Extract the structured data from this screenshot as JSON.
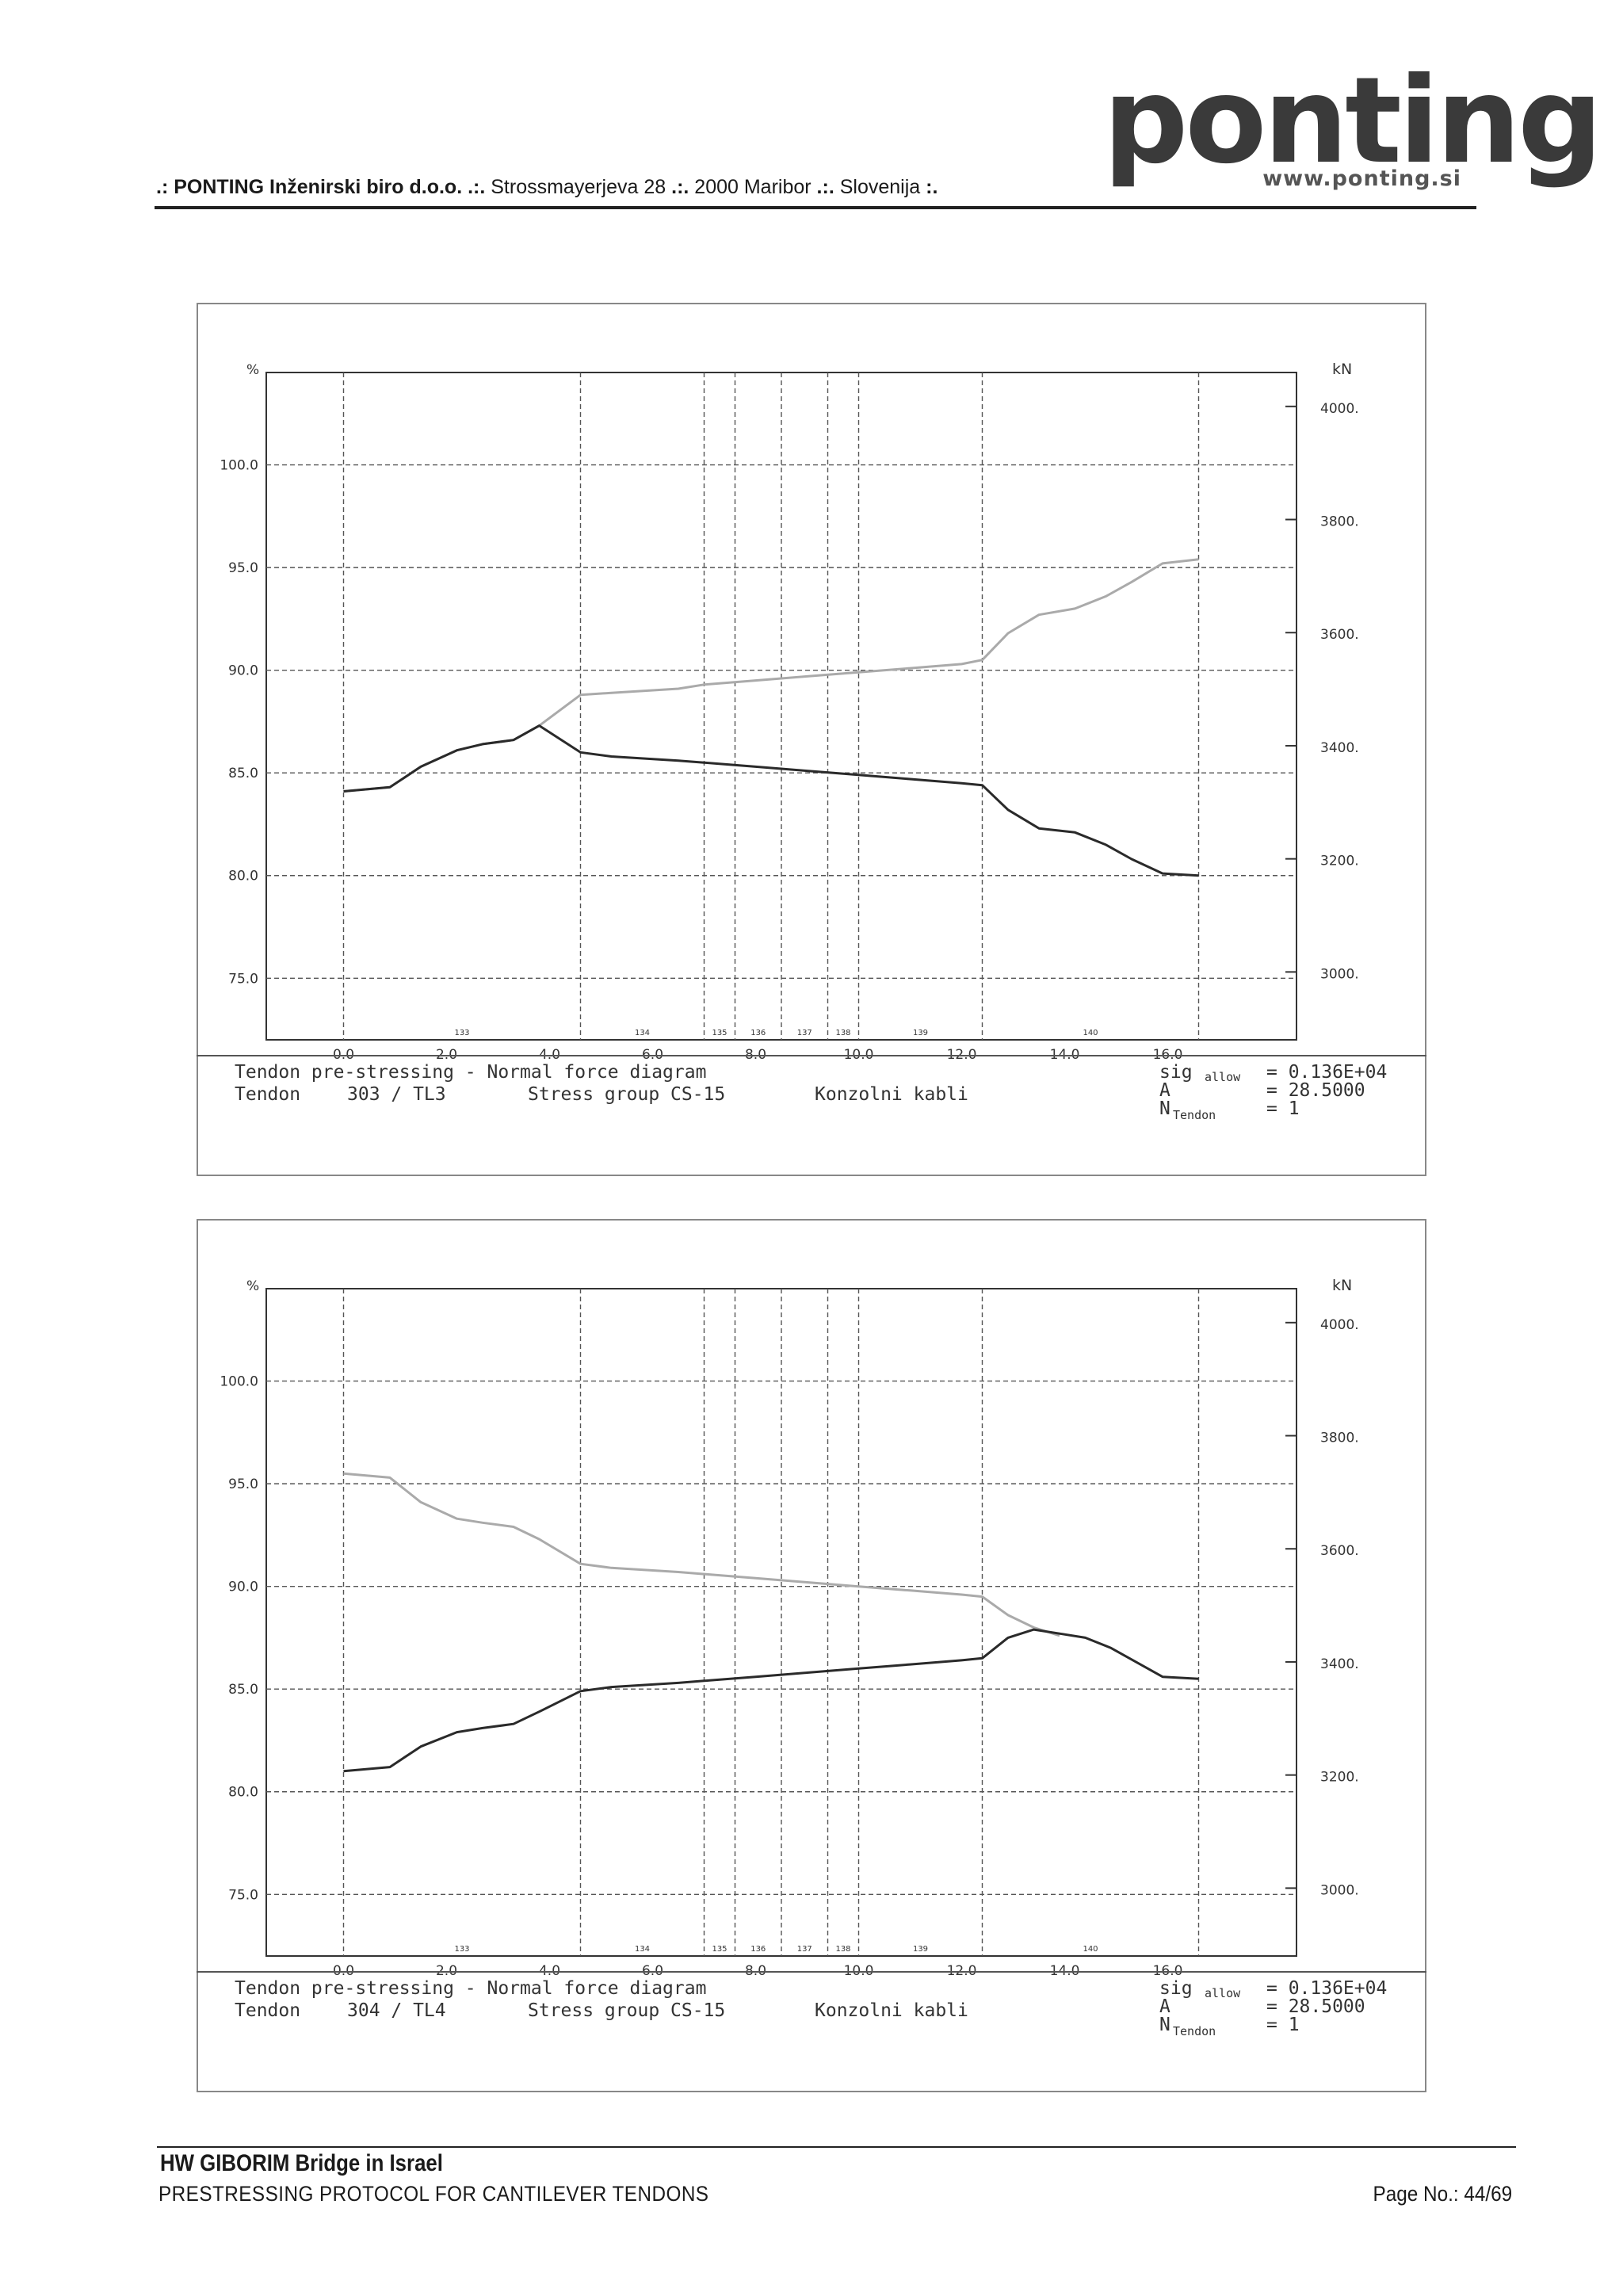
{
  "header": {
    "prefix": ".: ",
    "company": "PONTING Inženirski biro d.o.o.",
    "sep1": " .:. ",
    "address": "Strossmayerjeva 28",
    "sep2": " .:. ",
    "city": "2000 Maribor",
    "sep3": " .:. ",
    "country": "Slovenija",
    "suffix": " :."
  },
  "logo": {
    "word": "ponting",
    "url": "www.ponting.si"
  },
  "charts": [
    {
      "caption": {
        "line1": "Tendon pre-stressing   -   Normal force diagram",
        "line2_a": "Tendon",
        "line2_b": "303 / TL3",
        "line2_c": "Stress group CS-15",
        "line2_d": "Konzolni kabli",
        "sig_label": "sig",
        "sig_sub": "allow",
        "sig_value": "= 0.136E+04",
        "a_label": "A",
        "a_value": "= 28.5000",
        "n_label": "N",
        "n_sub": "Tendon",
        "n_value": "= 1"
      }
    },
    {
      "caption": {
        "line1": "Tendon pre-stressing   -   Normal force diagram",
        "line2_a": "Tendon",
        "line2_b": "304 / TL4",
        "line2_c": "Stress group CS-15",
        "line2_d": "Konzolni kabli",
        "sig_label": "sig",
        "sig_sub": "allow",
        "sig_value": "= 0.136E+04",
        "a_label": "A",
        "a_value": "= 28.5000",
        "n_label": "N",
        "n_sub": "Tendon",
        "n_value": "= 1"
      }
    }
  ],
  "chart_data": [
    {
      "type": "line",
      "left_axis_unit": "%",
      "right_axis_unit": "kN",
      "ylim_left": [
        72.0,
        104.5
      ],
      "ylim_right": [
        2880,
        4060
      ],
      "xlim": [
        -1.5,
        18.5
      ],
      "x_ticks": [
        "0.0",
        "2.0",
        "4.0",
        "6.0",
        "8.0",
        "10.0",
        "12.0",
        "14.0",
        "16.0"
      ],
      "y_ticks_left": [
        "75.0",
        "80.0",
        "85.0",
        "90.0",
        "95.0",
        "100.0"
      ],
      "y_ticks_right": [
        "3000.",
        "3200.",
        "3400.",
        "3600.",
        "3800.",
        "4000."
      ],
      "grid": true,
      "segments": [
        {
          "label": "133",
          "from": 0.0,
          "to": 4.6
        },
        {
          "label": "134",
          "from": 4.6,
          "to": 7.0
        },
        {
          "label": "135",
          "from": 7.0,
          "to": 7.6
        },
        {
          "label": "136",
          "from": 7.6,
          "to": 8.5
        },
        {
          "label": "137",
          "from": 8.5,
          "to": 9.4
        },
        {
          "label": "138",
          "from": 9.4,
          "to": 10.0
        },
        {
          "label": "139",
          "from": 10.0,
          "to": 12.4
        },
        {
          "label": "140",
          "from": 12.4,
          "to": 16.6
        }
      ],
      "series": [
        {
          "color": "#aaaaaa",
          "x": [
            0.0,
            0.9,
            1.5,
            2.2,
            2.7,
            3.3,
            3.8,
            4.6,
            5.2,
            6.5,
            7.0,
            8.0,
            9.0,
            10.0,
            11.0,
            12.0,
            12.4,
            12.9,
            13.5,
            14.2,
            14.8,
            15.3,
            15.9,
            16.6
          ],
          "y": [
            84.1,
            84.3,
            85.3,
            86.1,
            86.4,
            86.6,
            87.3,
            88.8,
            88.9,
            89.1,
            89.3,
            89.5,
            89.7,
            89.9,
            90.1,
            90.3,
            90.5,
            91.8,
            92.7,
            93.0,
            93.6,
            94.3,
            95.2,
            95.4
          ]
        },
        {
          "color": "#2a2a2a",
          "x": [
            0.0,
            0.9,
            1.5,
            2.2,
            2.7,
            3.3,
            3.8,
            4.6,
            5.2,
            6.5,
            7.0,
            8.0,
            9.0,
            10.0,
            11.0,
            12.0,
            12.4,
            12.9,
            13.5,
            14.2,
            14.8,
            15.3,
            15.9,
            16.6
          ],
          "y": [
            84.1,
            84.3,
            85.3,
            86.1,
            86.4,
            86.6,
            87.3,
            86.0,
            85.8,
            85.6,
            85.5,
            85.3,
            85.1,
            84.9,
            84.7,
            84.5,
            84.4,
            83.2,
            82.3,
            82.1,
            81.5,
            80.8,
            80.1,
            80.0
          ]
        }
      ]
    },
    {
      "type": "line",
      "left_axis_unit": "%",
      "right_axis_unit": "kN",
      "ylim_left": [
        72.0,
        104.5
      ],
      "ylim_right": [
        2880,
        4060
      ],
      "xlim": [
        -1.5,
        18.5
      ],
      "x_ticks": [
        "0.0",
        "2.0",
        "4.0",
        "6.0",
        "8.0",
        "10.0",
        "12.0",
        "14.0",
        "16.0"
      ],
      "y_ticks_left": [
        "75.0",
        "80.0",
        "85.0",
        "90.0",
        "95.0",
        "100.0"
      ],
      "y_ticks_right": [
        "3000.",
        "3200.",
        "3400.",
        "3600.",
        "3800.",
        "4000."
      ],
      "grid": true,
      "segments": [
        {
          "label": "133",
          "from": 0.0,
          "to": 4.6
        },
        {
          "label": "134",
          "from": 4.6,
          "to": 7.0
        },
        {
          "label": "135",
          "from": 7.0,
          "to": 7.6
        },
        {
          "label": "136",
          "from": 7.6,
          "to": 8.5
        },
        {
          "label": "137",
          "from": 8.5,
          "to": 9.4
        },
        {
          "label": "138",
          "from": 9.4,
          "to": 10.0
        },
        {
          "label": "139",
          "from": 10.0,
          "to": 12.4
        },
        {
          "label": "140",
          "from": 12.4,
          "to": 16.6
        }
      ],
      "series": [
        {
          "color": "#aaaaaa",
          "x": [
            0.0,
            0.9,
            1.5,
            2.2,
            2.7,
            3.3,
            3.8,
            4.6,
            5.2,
            6.5,
            7.0,
            8.0,
            9.0,
            10.0,
            11.0,
            12.0,
            12.4,
            12.9,
            13.4,
            13.9
          ],
          "y": [
            95.5,
            95.3,
            94.1,
            93.3,
            93.1,
            92.9,
            92.3,
            91.1,
            90.9,
            90.7,
            90.6,
            90.4,
            90.2,
            90.0,
            89.8,
            89.6,
            89.5,
            88.6,
            88.0,
            87.6
          ]
        },
        {
          "color": "#2a2a2a",
          "x": [
            0.0,
            0.9,
            1.5,
            2.2,
            2.7,
            3.3,
            3.8,
            4.6,
            5.2,
            6.5,
            7.0,
            8.0,
            9.0,
            10.0,
            11.0,
            12.0,
            12.4,
            12.9,
            13.4,
            13.9,
            14.4,
            14.9,
            15.9,
            16.6
          ],
          "y": [
            81.0,
            81.2,
            82.2,
            82.9,
            83.1,
            83.3,
            83.9,
            84.9,
            85.1,
            85.3,
            85.4,
            85.6,
            85.8,
            86.0,
            86.2,
            86.4,
            86.5,
            87.5,
            87.9,
            87.7,
            87.5,
            87.0,
            85.6,
            85.5
          ]
        }
      ]
    }
  ],
  "footer": {
    "title": "HW GIBORIM Bridge in Israel",
    "subtitle": "PRESTRESSING PROTOCOL FOR CANTILEVER TENDONS",
    "page": "Page No.: 44/69"
  }
}
